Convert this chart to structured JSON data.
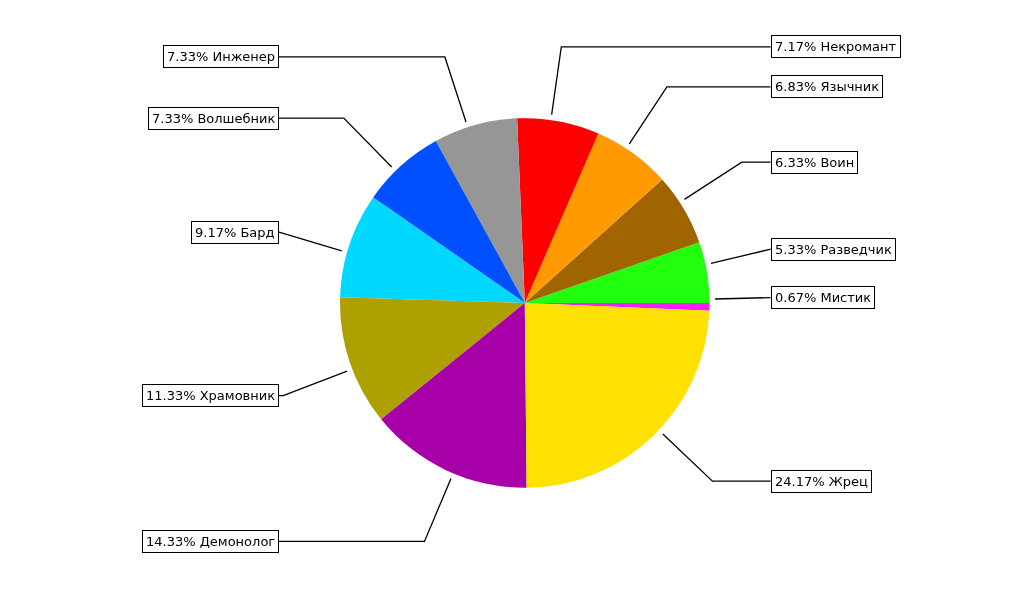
{
  "chart_data": {
    "type": "pie",
    "categories": [
      "Мистик",
      "Разведчик",
      "Воин",
      "Язычник",
      "Некромант",
      "Инженер",
      "Волшебник",
      "Бард",
      "Храмовник",
      "Демонолог",
      "Жрец"
    ],
    "values": [
      0.67,
      5.33,
      6.33,
      6.83,
      7.17,
      7.33,
      7.33,
      9.17,
      11.33,
      14.33,
      24.17
    ],
    "value_labels": [
      "0.67%",
      "5.33%",
      "6.33%",
      "6.83%",
      "7.17%",
      "7.33%",
      "7.33%",
      "9.17%",
      "11.33%",
      "14.33%",
      "24.17%"
    ],
    "colors": [
      "#f51ff5",
      "#22ff0e",
      "#a06400",
      "#ff9a00",
      "#ff0000",
      "#969696",
      "#0050ff",
      "#00d8ff",
      "#ada000",
      "#a800a8",
      "#ffe100"
    ],
    "legend": false
  }
}
